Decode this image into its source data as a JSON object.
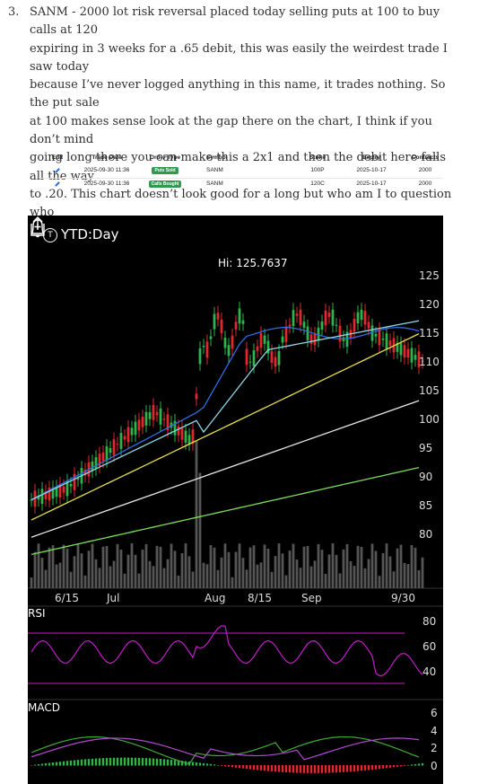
{
  "post": {
    "item_number": "3.",
    "paragraph": "SANM - 2000 lot risk reversal placed today selling puts at 100 to buy calls at 120\nexpiring in 3 weeks for a .65 debit, this was easily the weirdest trade I saw today\nbecause I’ve never logged anything in this name, it trades nothing. So the put sale\nat 100 makes sense look at the gap there on the chart, I think if you don’t mind\ngoing long there you can make this a 2x1 and then the debit here falls all the way\nto .20. This chart doesn’t look good for a long but who am I to question who\nplaced this."
  },
  "trade_table": {
    "headers": {
      "edit": "Edit",
      "date": "Trade Date",
      "type": "Order Type",
      "symbol": "Symbol",
      "strike": "Strike",
      "expiry": "Expiry",
      "contracts": "Contracts"
    },
    "rows": [
      {
        "date": "2025-09-30 11:36",
        "type": "Puts Sold",
        "symbol": "SANM",
        "strike": "100P",
        "expiry": "2025-10-17",
        "contracts": "2000",
        "badge_color": "#2f9a4d"
      },
      {
        "date": "2025-09-30 11:36",
        "type": "Calls Bought",
        "symbol": "SANM",
        "strike": "120C",
        "expiry": "2025-10-17",
        "contracts": "2000",
        "badge_color": "#2f9a4d"
      }
    ]
  },
  "chart": {
    "timeframe": "YTD:Day",
    "high_label": "Hi: 125.7637",
    "price_ticks": [
      "125",
      "120",
      "115",
      "110",
      "105",
      "100",
      "95",
      "90",
      "85",
      "80"
    ],
    "date_ticks": [
      "6/15",
      "Jul",
      "Aug",
      "8/15",
      "Sep",
      "9/30"
    ],
    "rsi_label": "RSI",
    "rsi_ticks": [
      "80",
      "60",
      "40"
    ],
    "macd_label": "MACD",
    "macd_ticks": [
      "6",
      "4",
      "2",
      "0"
    ],
    "colors": {
      "background": "#000000",
      "up": "#2fb34a",
      "down": "#e0282e",
      "ma_blue": "#2f6de0",
      "ma_cyan": "#8fd8ea",
      "ma_yellow": "#e8df4a",
      "ma_white": "#e8e8e8",
      "ma_green": "#7ddc5a",
      "rsi": "#c21ec9",
      "macd": "#42a83a",
      "signal": "#b04ad0"
    }
  }
}
